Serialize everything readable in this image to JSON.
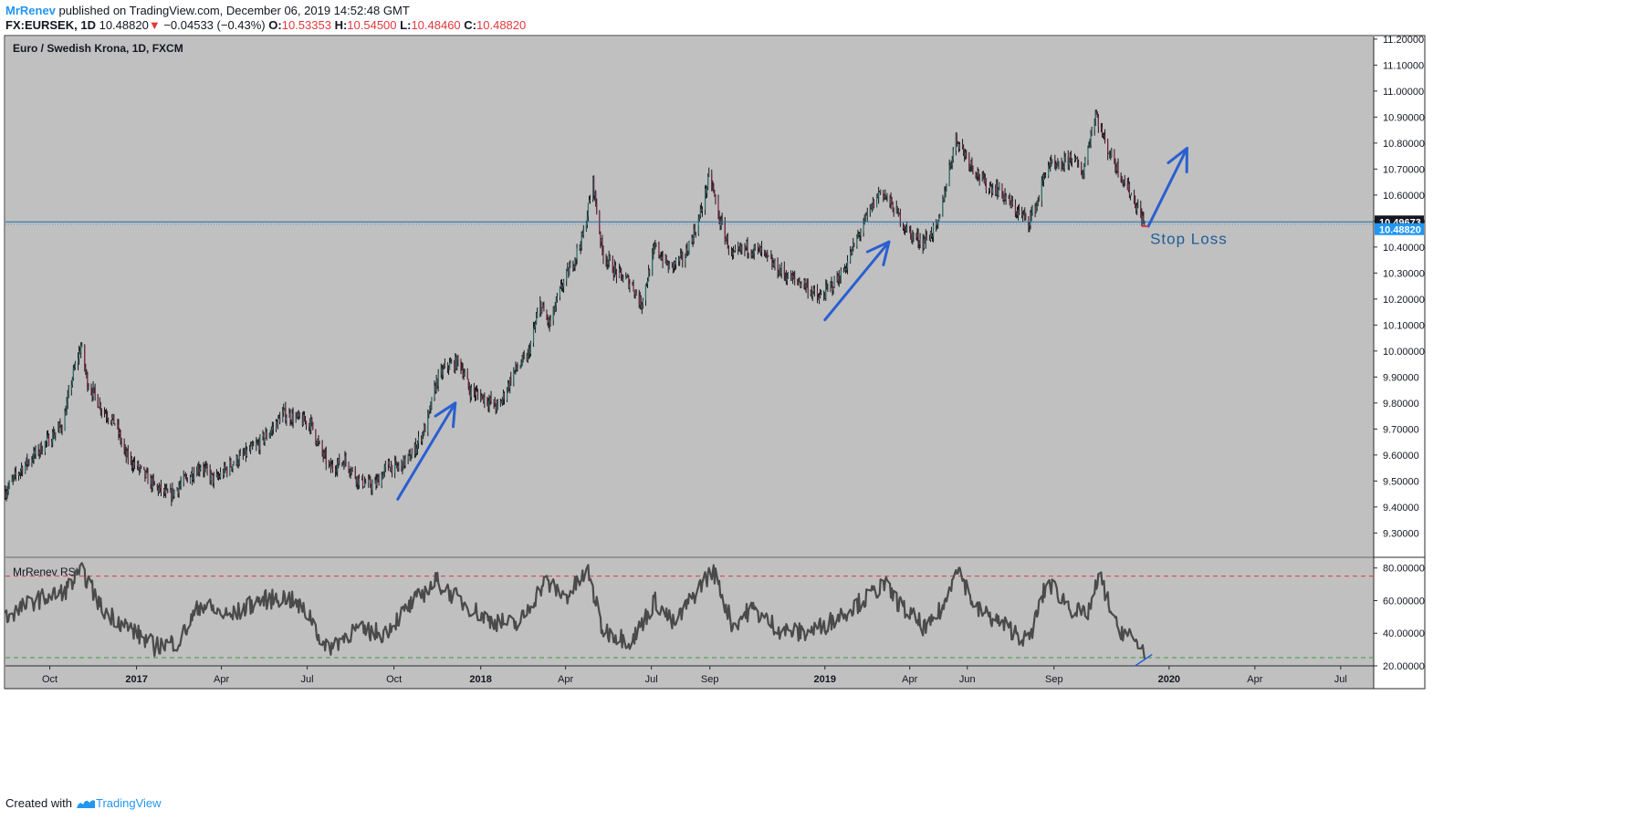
{
  "header": {
    "author": "MrRenev",
    "published_text": "published on TradingView.com, December 06, 2019 14:52:48 GMT",
    "symbol": "FX:EURSEK, 1D",
    "last": "10.48820",
    "change_arrow": "▼",
    "change": "−0.04533 (−0.43%)",
    "o_label": "O:",
    "o_value": "10.53353",
    "h_label": "H:",
    "h_value": "10.54500",
    "l_label": "L:",
    "l_value": "10.48460",
    "c_label": "C:",
    "c_value": "10.48820"
  },
  "footer": {
    "created_with": "Created with",
    "brand": "TradingView"
  },
  "colors": {
    "pane_bg": "#c0c0c0",
    "candle": "#1a1a1a",
    "rsi_line": "#4a4a4a",
    "arrow": "#2a5fd1",
    "price_line": "#1d6fa5",
    "overbought": "#e0393e",
    "oversold": "#3d9a3d",
    "last_price_badge": "#2196f3"
  },
  "chart_data": [
    {
      "type": "candlestick",
      "title": "Euro / Swedish Krona, 1D, FXCM",
      "ylim": [
        9.21,
        11.21
      ],
      "yticks": [
        "11.20000",
        "11.10000",
        "11.00000",
        "10.90000",
        "10.80000",
        "10.70000",
        "10.60000",
        "10.50000",
        "10.40000",
        "10.30000",
        "10.20000",
        "10.10000",
        "10.00000",
        "9.90000",
        "9.80000",
        "9.70000",
        "9.60000",
        "9.50000",
        "9.40000",
        "9.30000"
      ],
      "xticks": [
        "Oct",
        "2017",
        "Apr",
        "Jul",
        "Oct",
        "2018",
        "Apr",
        "Jul",
        "Sep",
        "2019",
        "Apr",
        "Jun",
        "Sep",
        "2020",
        "Apr",
        "Jul"
      ],
      "xtick_dates": [
        "2016-10-01",
        "2017-01-01",
        "2017-04-01",
        "2017-07-01",
        "2017-10-01",
        "2018-01-01",
        "2018-04-01",
        "2018-07-01",
        "2018-09-01",
        "2019-01-01",
        "2019-04-01",
        "2019-06-01",
        "2019-09-01",
        "2020-01-01",
        "2020-04-01",
        "2020-07-01"
      ],
      "x_range": [
        "2016-08-15",
        "2020-08-05"
      ],
      "path_points": [
        [
          "2016-08-15",
          9.46
        ],
        [
          "2016-09-01",
          9.55
        ],
        [
          "2016-09-20",
          9.62
        ],
        [
          "2016-10-05",
          9.68
        ],
        [
          "2016-10-15",
          9.72
        ],
        [
          "2016-10-25",
          9.9
        ],
        [
          "2016-11-03",
          10.02
        ],
        [
          "2016-11-10",
          9.88
        ],
        [
          "2016-11-25",
          9.78
        ],
        [
          "2016-12-10",
          9.72
        ],
        [
          "2016-12-20",
          9.6
        ],
        [
          "2017-01-05",
          9.54
        ],
        [
          "2017-01-20",
          9.48
        ],
        [
          "2017-02-05",
          9.44
        ],
        [
          "2017-02-20",
          9.5
        ],
        [
          "2017-03-10",
          9.56
        ],
        [
          "2017-03-25",
          9.5
        ],
        [
          "2017-04-10",
          9.56
        ],
        [
          "2017-04-25",
          9.6
        ],
        [
          "2017-05-10",
          9.64
        ],
        [
          "2017-05-25",
          9.7
        ],
        [
          "2017-06-05",
          9.76
        ],
        [
          "2017-06-20",
          9.74
        ],
        [
          "2017-07-05",
          9.72
        ],
        [
          "2017-07-15",
          9.62
        ],
        [
          "2017-07-25",
          9.55
        ],
        [
          "2017-08-10",
          9.58
        ],
        [
          "2017-08-25",
          9.5
        ],
        [
          "2017-09-10",
          9.48
        ],
        [
          "2017-09-25",
          9.56
        ],
        [
          "2017-10-05",
          9.55
        ],
        [
          "2017-10-20",
          9.6
        ],
        [
          "2017-11-05",
          9.72
        ],
        [
          "2017-11-15",
          9.88
        ],
        [
          "2017-11-25",
          9.94
        ],
        [
          "2017-12-10",
          9.96
        ],
        [
          "2017-12-20",
          9.85
        ],
        [
          "2018-01-05",
          9.82
        ],
        [
          "2018-01-20",
          9.78
        ],
        [
          "2018-02-05",
          9.92
        ],
        [
          "2018-02-20",
          9.98
        ],
        [
          "2018-03-05",
          10.18
        ],
        [
          "2018-03-15",
          10.1
        ],
        [
          "2018-03-28",
          10.25
        ],
        [
          "2018-04-10",
          10.35
        ],
        [
          "2018-04-20",
          10.45
        ],
        [
          "2018-04-30",
          10.65
        ],
        [
          "2018-05-10",
          10.38
        ],
        [
          "2018-05-25",
          10.3
        ],
        [
          "2018-06-10",
          10.26
        ],
        [
          "2018-06-20",
          10.18
        ],
        [
          "2018-07-05",
          10.4
        ],
        [
          "2018-07-20",
          10.32
        ],
        [
          "2018-08-05",
          10.36
        ],
        [
          "2018-08-20",
          10.5
        ],
        [
          "2018-09-01",
          10.68
        ],
        [
          "2018-09-10",
          10.52
        ],
        [
          "2018-09-25",
          10.36
        ],
        [
          "2018-10-10",
          10.4
        ],
        [
          "2018-10-25",
          10.38
        ],
        [
          "2018-11-10",
          10.32
        ],
        [
          "2018-11-25",
          10.28
        ],
        [
          "2018-12-10",
          10.26
        ],
        [
          "2018-12-25",
          10.2
        ],
        [
          "2019-01-05",
          10.24
        ],
        [
          "2019-01-20",
          10.3
        ],
        [
          "2019-02-05",
          10.44
        ],
        [
          "2019-02-15",
          10.52
        ],
        [
          "2019-03-01",
          10.62
        ],
        [
          "2019-03-15",
          10.55
        ],
        [
          "2019-04-01",
          10.45
        ],
        [
          "2019-04-15",
          10.42
        ],
        [
          "2019-05-01",
          10.48
        ],
        [
          "2019-05-10",
          10.65
        ],
        [
          "2019-05-20",
          10.82
        ],
        [
          "2019-06-05",
          10.72
        ],
        [
          "2019-06-20",
          10.64
        ],
        [
          "2019-07-05",
          10.62
        ],
        [
          "2019-07-20",
          10.55
        ],
        [
          "2019-08-05",
          10.5
        ],
        [
          "2019-08-15",
          10.58
        ],
        [
          "2019-08-25",
          10.72
        ],
        [
          "2019-09-05",
          10.7
        ],
        [
          "2019-09-20",
          10.75
        ],
        [
          "2019-10-01",
          10.68
        ],
        [
          "2019-10-15",
          10.92
        ],
        [
          "2019-10-25",
          10.8
        ],
        [
          "2019-11-05",
          10.72
        ],
        [
          "2019-11-15",
          10.65
        ],
        [
          "2019-11-25",
          10.58
        ],
        [
          "2019-12-06",
          10.49
        ]
      ],
      "horizontal_line": {
        "value": 10.49673,
        "label": "10.49673"
      },
      "last_price": {
        "value": 10.4882,
        "label": "10.48820"
      },
      "annotations": [
        {
          "type": "arrow",
          "from": [
            "2017-10-05",
            9.43
          ],
          "to": [
            "2017-12-05",
            9.8
          ],
          "head": "open"
        },
        {
          "type": "arrow",
          "from": [
            "2019-01-01",
            10.12
          ],
          "to": [
            "2019-03-10",
            10.42
          ],
          "head": "open"
        },
        {
          "type": "arrow",
          "from": [
            "2019-12-10",
            10.48
          ],
          "to": [
            "2020-01-20",
            10.78
          ],
          "head": "open"
        },
        {
          "type": "text",
          "text": "Stop Loss",
          "at": [
            "2019-12-10",
            10.43
          ]
        }
      ]
    },
    {
      "type": "line",
      "title": "MrRenev RSI",
      "ylim": [
        20,
        86
      ],
      "yticks": [
        "80.00000",
        "60.00000",
        "40.00000",
        "20.00000"
      ],
      "overbought": 75,
      "oversold": 25,
      "path_points": [
        [
          "2016-08-15",
          50
        ],
        [
          "2016-09-15",
          60
        ],
        [
          "2016-10-15",
          65
        ],
        [
          "2016-11-05",
          78
        ],
        [
          "2016-11-25",
          55
        ],
        [
          "2016-12-20",
          45
        ],
        [
          "2017-01-20",
          32
        ],
        [
          "2017-02-15",
          35
        ],
        [
          "2017-03-10",
          58
        ],
        [
          "2017-04-10",
          50
        ],
        [
          "2017-05-10",
          60
        ],
        [
          "2017-06-10",
          62
        ],
        [
          "2017-07-05",
          50
        ],
        [
          "2017-07-20",
          30
        ],
        [
          "2017-08-20",
          42
        ],
        [
          "2017-09-20",
          40
        ],
        [
          "2017-10-20",
          58
        ],
        [
          "2017-11-15",
          72
        ],
        [
          "2017-12-10",
          60
        ],
        [
          "2018-01-10",
          48
        ],
        [
          "2018-02-10",
          45
        ],
        [
          "2018-03-10",
          72
        ],
        [
          "2018-04-01",
          62
        ],
        [
          "2018-04-25",
          78
        ],
        [
          "2018-05-10",
          42
        ],
        [
          "2018-06-10",
          35
        ],
        [
          "2018-07-05",
          60
        ],
        [
          "2018-07-25",
          45
        ],
        [
          "2018-08-25",
          72
        ],
        [
          "2018-09-05",
          78
        ],
        [
          "2018-09-25",
          45
        ],
        [
          "2018-10-15",
          55
        ],
        [
          "2018-11-15",
          42
        ],
        [
          "2018-12-10",
          40
        ],
        [
          "2019-01-01",
          45
        ],
        [
          "2019-02-15",
          62
        ],
        [
          "2019-03-05",
          70
        ],
        [
          "2019-03-25",
          55
        ],
        [
          "2019-04-20",
          42
        ],
        [
          "2019-05-10",
          60
        ],
        [
          "2019-05-20",
          83
        ],
        [
          "2019-06-10",
          55
        ],
        [
          "2019-07-10",
          45
        ],
        [
          "2019-08-05",
          35
        ],
        [
          "2019-08-25",
          72
        ],
        [
          "2019-09-20",
          55
        ],
        [
          "2019-10-05",
          50
        ],
        [
          "2019-10-20",
          75
        ],
        [
          "2019-11-05",
          45
        ],
        [
          "2019-11-20",
          38
        ],
        [
          "2019-12-06",
          30
        ]
      ],
      "annotations": [
        {
          "type": "line",
          "from": [
            "2019-11-26",
            20
          ],
          "to": [
            "2019-12-14",
            27
          ]
        }
      ]
    }
  ]
}
